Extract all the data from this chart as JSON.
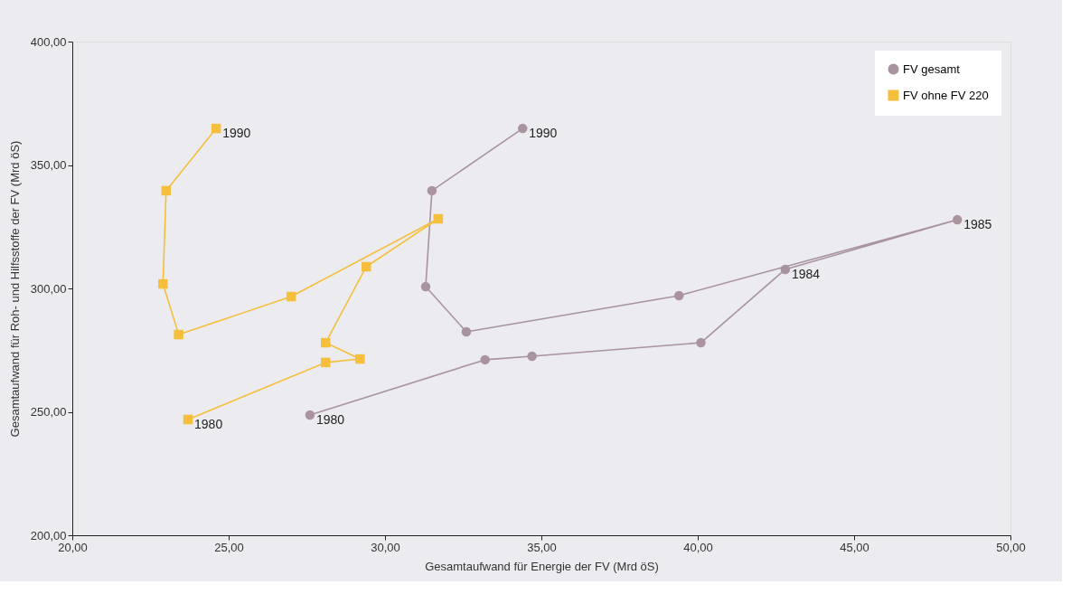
{
  "chart_data": {
    "type": "line",
    "xlabel": "Gesamtaufwand für Energie der FV (Mrd öS)",
    "ylabel": "Gesamtaufwand für Roh- und Hilfsstoffe der FV (Mrd öS)",
    "xlim": [
      20,
      50
    ],
    "ylim": [
      200,
      400
    ],
    "xticks": [
      {
        "value": 20,
        "label": "20,00"
      },
      {
        "value": 25,
        "label": "25,00"
      },
      {
        "value": 30,
        "label": "30,00"
      },
      {
        "value": 35,
        "label": "35,00"
      },
      {
        "value": 40,
        "label": "40,00"
      },
      {
        "value": 45,
        "label": "45,00"
      },
      {
        "value": 50,
        "label": "50,00"
      }
    ],
    "yticks": [
      {
        "value": 200,
        "label": "200,00"
      },
      {
        "value": 250,
        "label": "250,00"
      },
      {
        "value": 300,
        "label": "300,00"
      },
      {
        "value": 350,
        "label": "350,00"
      },
      {
        "value": 400,
        "label": "400,00"
      }
    ],
    "grid": false,
    "legend": "top right",
    "series": [
      {
        "name": "FV gesamt",
        "color": "#a8939f",
        "marker": "circle",
        "x": [
          27.6,
          33.2,
          34.7,
          40.1,
          42.8,
          48.3,
          39.4,
          32.6,
          31.3,
          31.5,
          34.4
        ],
        "values": [
          248.7,
          271.1,
          272.5,
          278.0,
          307.7,
          327.8,
          297.1,
          282.4,
          300.7,
          339.6,
          364.8
        ]
      },
      {
        "name": "FV ohne FV 220",
        "color": "#f5bf3c",
        "marker": "square",
        "x": [
          23.7,
          28.1,
          29.2,
          28.1,
          29.4,
          31.7,
          27.0,
          23.4,
          22.9,
          23.0,
          24.6
        ],
        "values": [
          246.9,
          270.0,
          271.4,
          278.0,
          308.8,
          328.2,
          296.7,
          281.3,
          301.8,
          339.6,
          364.8
        ]
      }
    ],
    "annotations": [
      {
        "text": "1980",
        "x": 27.6,
        "y": 248.7
      },
      {
        "text": "1990",
        "x": 34.4,
        "y": 364.8
      },
      {
        "text": "1984",
        "x": 42.8,
        "y": 307.7
      },
      {
        "text": "1985",
        "x": 48.3,
        "y": 327.8
      },
      {
        "text": "1980",
        "x": 23.7,
        "y": 246.9
      },
      {
        "text": "1990",
        "x": 24.6,
        "y": 364.8
      }
    ]
  }
}
